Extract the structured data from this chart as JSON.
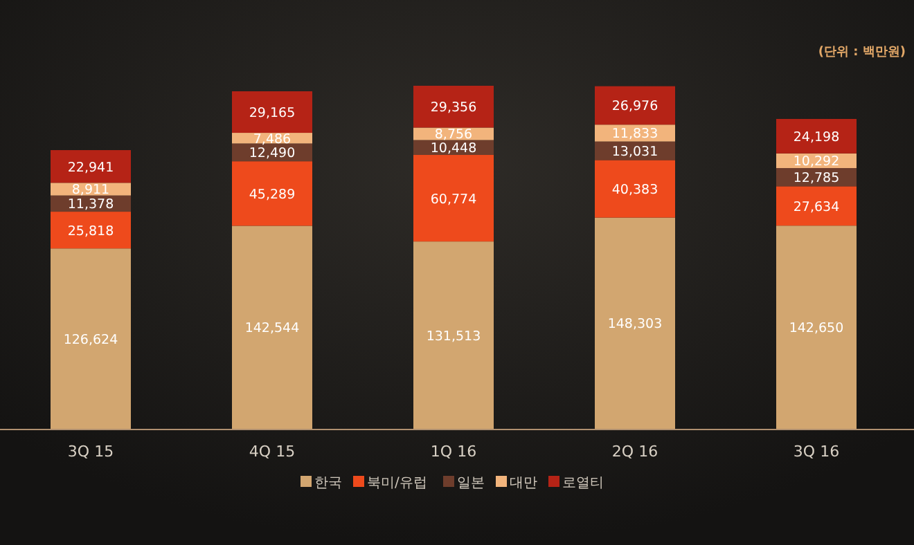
{
  "chart_data": {
    "type": "bar",
    "stacked": true,
    "legend": "bottom",
    "annotations": [
      "(단위 : 백만원)"
    ],
    "categories": [
      "3Q 15",
      "4Q 15",
      "1Q 16",
      "2Q 16",
      "3Q 16"
    ],
    "series": [
      {
        "name": "한국",
        "color": "#d2a670",
        "values": [
          126624,
          142544,
          131513,
          148303,
          142650
        ],
        "value_labels": [
          "126,624",
          "142,544",
          "131,513",
          "148,303",
          "142,650"
        ]
      },
      {
        "name": "북미/유럽",
        "color": "#ee4a1c",
        "values": [
          25818,
          45289,
          60774,
          40383,
          27634
        ],
        "value_labels": [
          "25,818",
          "45,289",
          "60,774",
          "40,383",
          "27,634"
        ]
      },
      {
        "name": "일본",
        "color": "#6e3d2c",
        "values": [
          11378,
          12490,
          10448,
          13031,
          12785
        ],
        "value_labels": [
          "11,378",
          "12,490",
          "10,448",
          "13,031",
          "12,785"
        ]
      },
      {
        "name": "대만",
        "color": "#f2b47c",
        "values": [
          8911,
          7486,
          8756,
          11833,
          10292
        ],
        "value_labels": [
          "8,911",
          "7,486",
          "8,756",
          "11,833",
          "10,292"
        ]
      },
      {
        "name": "로열티",
        "color": "#b52316",
        "values": [
          22941,
          29165,
          29356,
          26976,
          24198
        ],
        "value_labels": [
          "22,941",
          "29,165",
          "29,356",
          "26,976",
          "24,198"
        ]
      }
    ]
  }
}
